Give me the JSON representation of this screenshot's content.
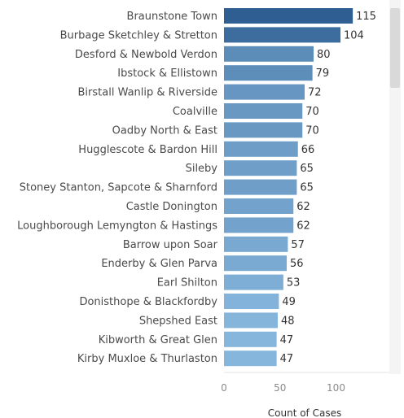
{
  "chart_data": {
    "type": "bar",
    "orientation": "horizontal",
    "categories": [
      "Braunstone Town",
      "Burbage Sketchley & Stretton",
      "Desford & Newbold Verdon",
      "Ibstock & Ellistown",
      "Birstall Wanlip & Riverside",
      "Coalville",
      "Oadby North & East",
      "Hugglescote & Bardon Hill",
      "Sileby",
      "Stoney Stanton, Sapcote & Sharnford",
      "Castle Donington",
      "Loughborough Lemyngton & Hastings",
      "Barrow upon Soar",
      "Enderby & Glen Parva",
      "Earl Shilton",
      "Donisthope & Blackfordby",
      "Shepshed East",
      "Kibworth & Great Glen",
      "Kirby Muxloe & Thurlaston"
    ],
    "values": [
      115,
      104,
      80,
      79,
      72,
      70,
      70,
      66,
      65,
      65,
      62,
      62,
      57,
      56,
      53,
      49,
      48,
      47,
      47
    ],
    "xlabel": "Count of Cases",
    "ylabel": "",
    "xlim": [
      0,
      150
    ],
    "xticks": [
      0,
      50,
      100
    ],
    "grid": false,
    "colors": {
      "low": "#86b6dc",
      "high": "#2f5f92"
    }
  }
}
